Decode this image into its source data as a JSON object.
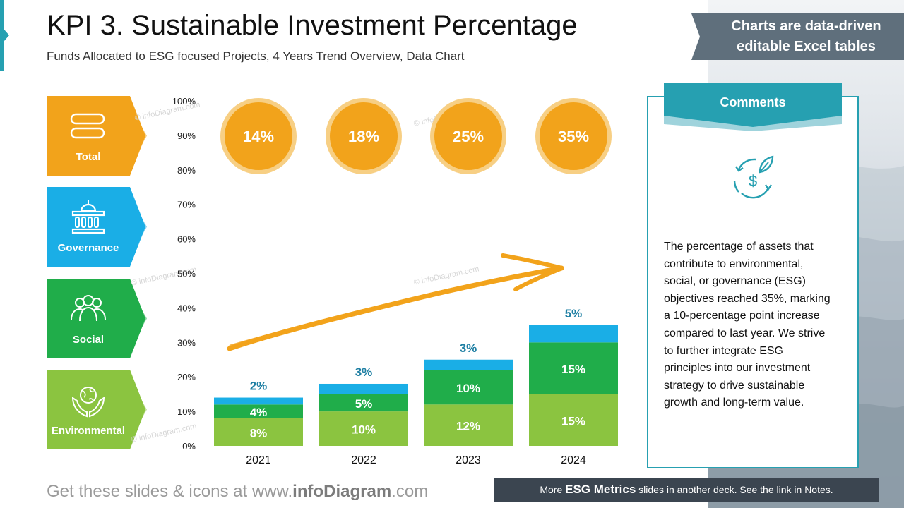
{
  "header": {
    "title": "KPI 3. Sustainable Investment Percentage",
    "subtitle": "Funds Allocated to ESG focused Projects, 4 Years Trend Overview, Data Chart"
  },
  "badge": {
    "line1": "Charts are data-driven",
    "line2": "editable Excel tables"
  },
  "sidebar": {
    "items": [
      {
        "label": "Total",
        "color": "#f2a31b",
        "icon": "toggle-icon"
      },
      {
        "label": "Governance",
        "color": "#1aaee6",
        "icon": "government-building-icon"
      },
      {
        "label": "Social",
        "color": "#20ad4a",
        "icon": "people-group-icon"
      },
      {
        "label": "Environmental",
        "color": "#8bc440",
        "icon": "globe-hands-icon"
      }
    ]
  },
  "chart_data": {
    "type": "bar",
    "stacked": true,
    "categories": [
      "2021",
      "2022",
      "2023",
      "2024"
    ],
    "series": [
      {
        "name": "Environmental",
        "color": "#8bc440",
        "values": [
          8,
          10,
          12,
          15
        ],
        "labels": [
          "8%",
          "10%",
          "12%",
          "15%"
        ]
      },
      {
        "name": "Social",
        "color": "#20ad4a",
        "values": [
          4,
          5,
          10,
          15
        ],
        "labels": [
          "4%",
          "5%",
          "10%",
          "15%"
        ]
      },
      {
        "name": "Governance",
        "color": "#1aaee6",
        "values": [
          2,
          3,
          3,
          5
        ],
        "labels": [
          "2%",
          "3%",
          "3%",
          "5%"
        ]
      }
    ],
    "totals": [
      14,
      18,
      25,
      35
    ],
    "total_labels": [
      "14%",
      "18%",
      "25%",
      "35%"
    ],
    "ylim": [
      0,
      100
    ],
    "yticks": [
      "0%",
      "10%",
      "20%",
      "30%",
      "40%",
      "50%",
      "60%",
      "70%",
      "80%",
      "90%",
      "100%"
    ],
    "grid": false,
    "trend_arrow": true
  },
  "comments": {
    "title": "Comments",
    "icon": "sustainable-money-icon",
    "text": "The percentage of assets that contribute to environmental, social, or governance (ESG) objectives reached 35%, marking a 10-percentage point increase compared to last year. We strive to further integrate ESG principles into our investment strategy to drive sustainable growth and long-term value."
  },
  "watermark": "© infoDiagram.com",
  "footer": {
    "left_prefix": "Get these slides & icons at www.",
    "left_brand": "infoDiagram",
    "left_suffix": ".com",
    "right_prefix": "More ",
    "right_bold": "ESG Metrics",
    "right_suffix": " slides in another deck. See the link in Notes."
  },
  "colors": {
    "accent": "#26a0b1",
    "dark": "#3b4550",
    "orange": "#f2a31b"
  }
}
